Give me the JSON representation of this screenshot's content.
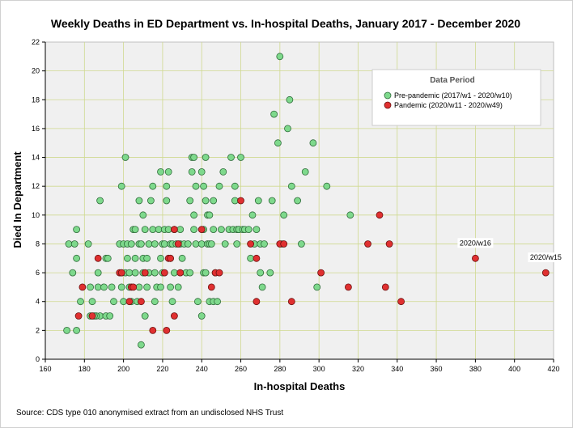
{
  "chart_data": {
    "type": "scatter",
    "title": "Weekly Deaths in ED Department vs. In-hospital Deaths, January 2017 - December 2020",
    "xlabel": "In-hospital Deaths",
    "ylabel": "Died In Department",
    "xlim": [
      160,
      420
    ],
    "ylim": [
      0,
      22
    ],
    "xticks": [
      160,
      180,
      200,
      220,
      240,
      260,
      280,
      300,
      320,
      340,
      360,
      380,
      400,
      420
    ],
    "yticks": [
      0,
      2,
      4,
      6,
      8,
      10,
      12,
      14,
      16,
      18,
      20,
      22
    ],
    "grid": true,
    "legend": {
      "title": "Data Period",
      "placement": "top-right"
    },
    "series": [
      {
        "name": "Pre-pandemic (2017/w1 - 2020/w10)",
        "color": "#7ed98c",
        "edge": "#2f6b3a",
        "points": [
          [
            171,
            2
          ],
          [
            176,
            2
          ],
          [
            172,
            8
          ],
          [
            175,
            8
          ],
          [
            174,
            6
          ],
          [
            176,
            7
          ],
          [
            176,
            9
          ],
          [
            178,
            4
          ],
          [
            182,
            8
          ],
          [
            183,
            5
          ],
          [
            184,
            4
          ],
          [
            183,
            3
          ],
          [
            187,
            6
          ],
          [
            187,
            5
          ],
          [
            188,
            3
          ],
          [
            186,
            3
          ],
          [
            185,
            3
          ],
          [
            188,
            11
          ],
          [
            190,
            5
          ],
          [
            191,
            3
          ],
          [
            191,
            7
          ],
          [
            192,
            7
          ],
          [
            193,
            3
          ],
          [
            194,
            5
          ],
          [
            195,
            4
          ],
          [
            198,
            8
          ],
          [
            199,
            12
          ],
          [
            200,
            8
          ],
          [
            199,
            6
          ],
          [
            199,
            5
          ],
          [
            200,
            4
          ],
          [
            201,
            14
          ],
          [
            201,
            6
          ],
          [
            202,
            8
          ],
          [
            202,
            7
          ],
          [
            203,
            6
          ],
          [
            203,
            5
          ],
          [
            204,
            8
          ],
          [
            204,
            4
          ],
          [
            205,
            9
          ],
          [
            206,
            9
          ],
          [
            206,
            7
          ],
          [
            206,
            6
          ],
          [
            207,
            4
          ],
          [
            208,
            5
          ],
          [
            208,
            8
          ],
          [
            208,
            11
          ],
          [
            209,
            1
          ],
          [
            209,
            8
          ],
          [
            210,
            6
          ],
          [
            210,
            10
          ],
          [
            210,
            7
          ],
          [
            211,
            9
          ],
          [
            211,
            3
          ],
          [
            212,
            7
          ],
          [
            212,
            5
          ],
          [
            213,
            8
          ],
          [
            213,
            6
          ],
          [
            214,
            11
          ],
          [
            215,
            12
          ],
          [
            215,
            9
          ],
          [
            216,
            8
          ],
          [
            216,
            4
          ],
          [
            216,
            6
          ],
          [
            217,
            5
          ],
          [
            218,
            9
          ],
          [
            219,
            13
          ],
          [
            219,
            7
          ],
          [
            219,
            5
          ],
          [
            220,
            8
          ],
          [
            220,
            6
          ],
          [
            221,
            9
          ],
          [
            221,
            8
          ],
          [
            222,
            12
          ],
          [
            222,
            11
          ],
          [
            223,
            13
          ],
          [
            223,
            9
          ],
          [
            224,
            8
          ],
          [
            224,
            7
          ],
          [
            224,
            5
          ],
          [
            225,
            8
          ],
          [
            225,
            4
          ],
          [
            226,
            9
          ],
          [
            226,
            6
          ],
          [
            227,
            8
          ],
          [
            228,
            5
          ],
          [
            229,
            9
          ],
          [
            229,
            8
          ],
          [
            230,
            7
          ],
          [
            231,
            8
          ],
          [
            232,
            6
          ],
          [
            233,
            8
          ],
          [
            234,
            11
          ],
          [
            234,
            6
          ],
          [
            235,
            13
          ],
          [
            235,
            14
          ],
          [
            236,
            14
          ],
          [
            236,
            9
          ],
          [
            236,
            10
          ],
          [
            237,
            8
          ],
          [
            237,
            12
          ],
          [
            238,
            4
          ],
          [
            240,
            13
          ],
          [
            240,
            8
          ],
          [
            240,
            3
          ],
          [
            241,
            12
          ],
          [
            241,
            9
          ],
          [
            241,
            6
          ],
          [
            242,
            14
          ],
          [
            242,
            11
          ],
          [
            242,
            6
          ],
          [
            243,
            10
          ],
          [
            243,
            8
          ],
          [
            244,
            10
          ],
          [
            244,
            8
          ],
          [
            244,
            4
          ],
          [
            245,
            8
          ],
          [
            246,
            11
          ],
          [
            246,
            9
          ],
          [
            246,
            4
          ],
          [
            247,
            6
          ],
          [
            248,
            4
          ],
          [
            249,
            12
          ],
          [
            250,
            9
          ],
          [
            251,
            13
          ],
          [
            252,
            8
          ],
          [
            254,
            9
          ],
          [
            255,
            14
          ],
          [
            256,
            9
          ],
          [
            257,
            12
          ],
          [
            257,
            11
          ],
          [
            258,
            9
          ],
          [
            258,
            8
          ],
          [
            259,
            9
          ],
          [
            259,
            9
          ],
          [
            260,
            14
          ],
          [
            261,
            9
          ],
          [
            262,
            9
          ],
          [
            264,
            9
          ],
          [
            265,
            7
          ],
          [
            266,
            10
          ],
          [
            267,
            8
          ],
          [
            268,
            9
          ],
          [
            269,
            11
          ],
          [
            270,
            8
          ],
          [
            270,
            6
          ],
          [
            271,
            5
          ],
          [
            272,
            8
          ],
          [
            275,
            6
          ],
          [
            276,
            11
          ],
          [
            277,
            17
          ],
          [
            279,
            15
          ],
          [
            280,
            21
          ],
          [
            281,
            8
          ],
          [
            282,
            10
          ],
          [
            284,
            16
          ],
          [
            285,
            18
          ],
          [
            286,
            12
          ],
          [
            289,
            11
          ],
          [
            291,
            8
          ],
          [
            293,
            13
          ],
          [
            297,
            15
          ],
          [
            299,
            5
          ],
          [
            304,
            12
          ],
          [
            316,
            10
          ]
        ]
      },
      {
        "name": "Pandemic (2020/w11 - 2020/w49)",
        "color": "#e03030",
        "edge": "#6b1010",
        "points": [
          [
            177,
            3
          ],
          [
            179,
            5
          ],
          [
            184,
            3
          ],
          [
            187,
            7
          ],
          [
            198,
            6
          ],
          [
            199,
            6
          ],
          [
            203,
            4
          ],
          [
            204,
            5
          ],
          [
            205,
            5
          ],
          [
            209,
            4
          ],
          [
            211,
            6
          ],
          [
            215,
            2
          ],
          [
            221,
            6
          ],
          [
            222,
            2
          ],
          [
            223,
            7
          ],
          [
            224,
            7
          ],
          [
            226,
            3
          ],
          [
            226,
            9
          ],
          [
            228,
            8
          ],
          [
            229,
            6
          ],
          [
            240,
            9
          ],
          [
            245,
            5
          ],
          [
            247,
            6
          ],
          [
            249,
            6
          ],
          [
            260,
            11
          ],
          [
            265,
            8
          ],
          [
            268,
            4
          ],
          [
            268,
            7
          ],
          [
            280,
            8
          ],
          [
            282,
            8
          ],
          [
            286,
            4
          ],
          [
            301,
            6
          ],
          [
            315,
            5
          ],
          [
            325,
            8
          ],
          [
            331,
            10
          ],
          [
            334,
            5
          ],
          [
            336,
            8
          ],
          [
            342,
            4
          ],
          [
            380,
            7
          ],
          [
            416,
            6
          ]
        ]
      }
    ],
    "annotations": [
      {
        "text": "2020/w16",
        "x": 380,
        "y": 7
      },
      {
        "text": "2020/w15",
        "x": 416,
        "y": 6
      }
    ]
  },
  "source_note": "Source: CDS type 010 anonymised extract from an undisclosed NHS Trust"
}
